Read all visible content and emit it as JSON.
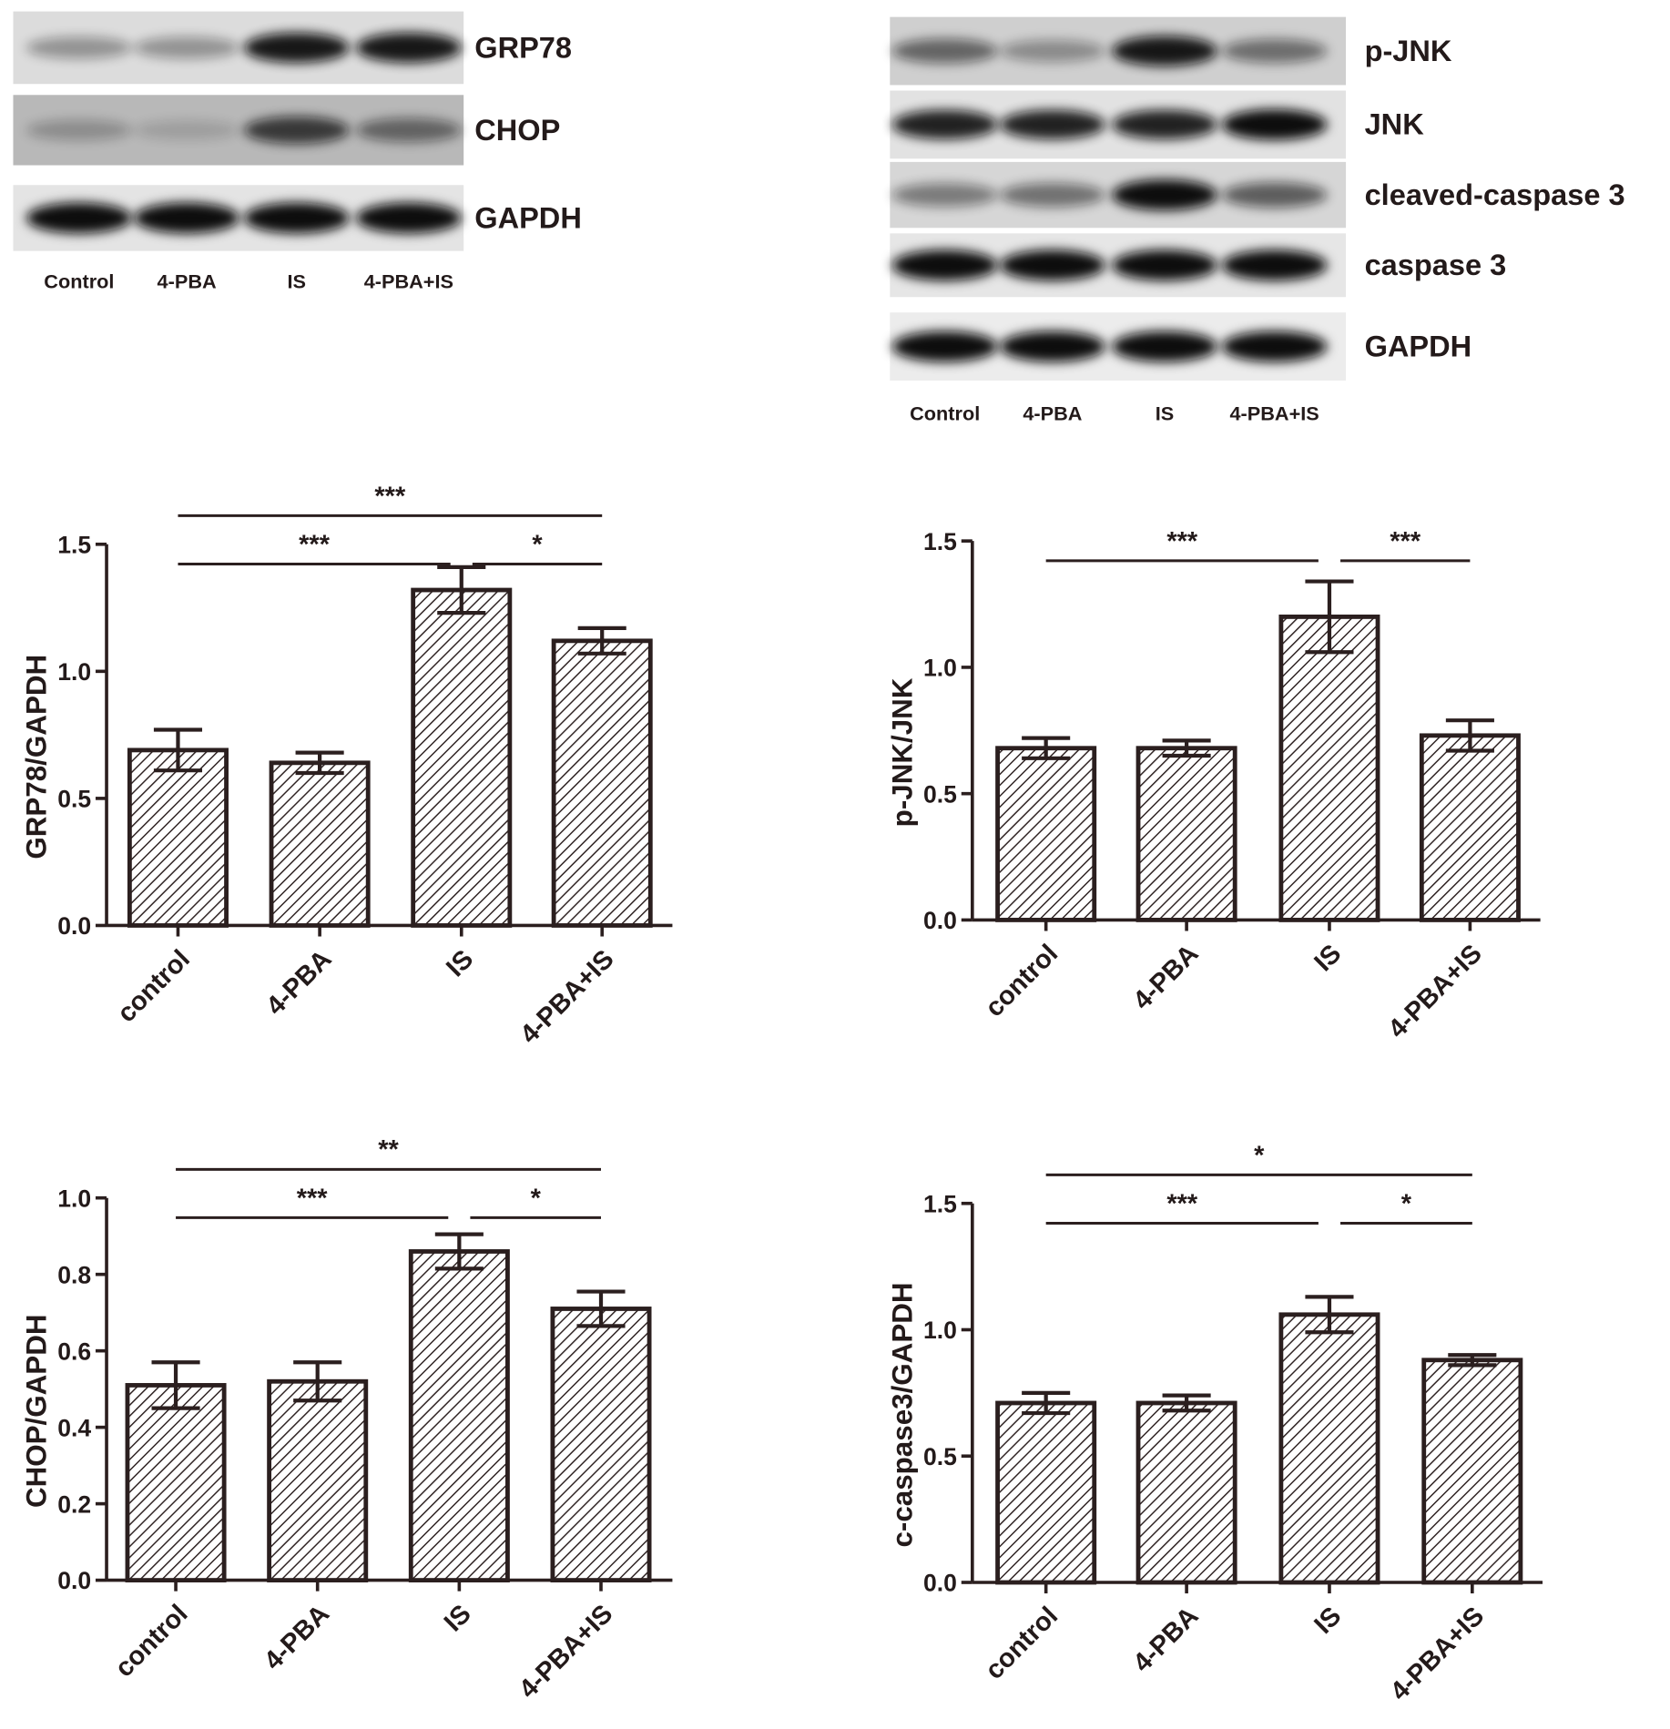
{
  "blots": [
    {
      "rows": [
        "GRP78",
        "CHOP",
        "GAPDH"
      ],
      "lanes": [
        "Control",
        "4-PBA",
        "IS",
        "4-PBA+IS"
      ]
    },
    {
      "rows": [
        "p-JNK",
        "JNK",
        "cleaved-caspase 3",
        "caspase 3",
        "GAPDH"
      ],
      "lanes": [
        "Control",
        "4-PBA",
        "IS",
        "4-PBA+IS"
      ]
    }
  ],
  "chart_data": [
    {
      "type": "bar",
      "ylabel": "GRP78/GAPDH",
      "categories": [
        "control",
        "4-PBA",
        "IS",
        "4-PBA+IS"
      ],
      "values": [
        0.69,
        0.64,
        1.32,
        1.12
      ],
      "errors": [
        0.08,
        0.04,
        0.09,
        0.05
      ],
      "color": "#2b1f1f",
      "ylim": [
        0,
        1.5
      ],
      "yticks": [
        {
          "value": 0,
          "label": "0.0"
        },
        0.5,
        {
          "value": 1,
          "label": "1.0"
        },
        1.5
      ],
      "annotations": [
        {
          "text": "***",
          "from": 0,
          "to": 3
        },
        {
          "text": "***",
          "from": 0,
          "to": 2
        },
        {
          "text": "*",
          "from": 2,
          "to": 3
        }
      ]
    },
    {
      "type": "bar",
      "ylabel": "p-JNK/JNK",
      "categories": [
        "control",
        "4-PBA",
        "IS",
        "4-PBA+IS"
      ],
      "values": [
        0.68,
        0.68,
        1.2,
        0.73
      ],
      "errors": [
        0.04,
        0.03,
        0.14,
        0.06
      ],
      "color": "#2b1f1f",
      "ylim": [
        0,
        1.5
      ],
      "yticks": [
        {
          "value": 0,
          "label": "0.0"
        },
        0.5,
        {
          "value": 1,
          "label": "1.0"
        },
        1.5
      ],
      "annotations": [
        {
          "text": "***",
          "from": 0,
          "to": 2
        },
        {
          "text": "***",
          "from": 2,
          "to": 3
        }
      ]
    },
    {
      "type": "bar",
      "ylabel": "CHOP/GAPDH",
      "categories": [
        "control",
        "4-PBA",
        "IS",
        "4-PBA+IS"
      ],
      "values": [
        0.51,
        0.52,
        0.86,
        0.71
      ],
      "errors": [
        0.06,
        0.05,
        0.045,
        0.045
      ],
      "color": "#2b1f1f",
      "ylim": [
        0,
        1
      ],
      "yticks": [
        {
          "value": 0,
          "label": "0.0"
        },
        0.2,
        0.4,
        0.6,
        0.8,
        {
          "value": 1,
          "label": "1.0"
        }
      ],
      "annotations": [
        {
          "text": "**",
          "from": 0,
          "to": 3
        },
        {
          "text": "***",
          "from": 0,
          "to": 2
        },
        {
          "text": "*",
          "from": 2,
          "to": 3
        }
      ]
    },
    {
      "type": "bar",
      "ylabel": "c-caspase3/GAPDH",
      "categories": [
        "control",
        "4-PBA",
        "IS",
        "4-PBA+IS"
      ],
      "values": [
        0.71,
        0.71,
        1.06,
        0.88
      ],
      "errors": [
        0.04,
        0.03,
        0.07,
        0.02
      ],
      "color": "#2b1f1f",
      "ylim": [
        0,
        1.5
      ],
      "yticks": [
        {
          "value": 0,
          "label": "0.0"
        },
        0.5,
        {
          "value": 1,
          "label": "1.0"
        },
        1.5
      ],
      "annotations": [
        {
          "text": "*",
          "from": 0,
          "to": 3
        },
        {
          "text": "***",
          "from": 0,
          "to": 2
        },
        {
          "text": "*",
          "from": 2,
          "to": 3
        }
      ]
    }
  ]
}
